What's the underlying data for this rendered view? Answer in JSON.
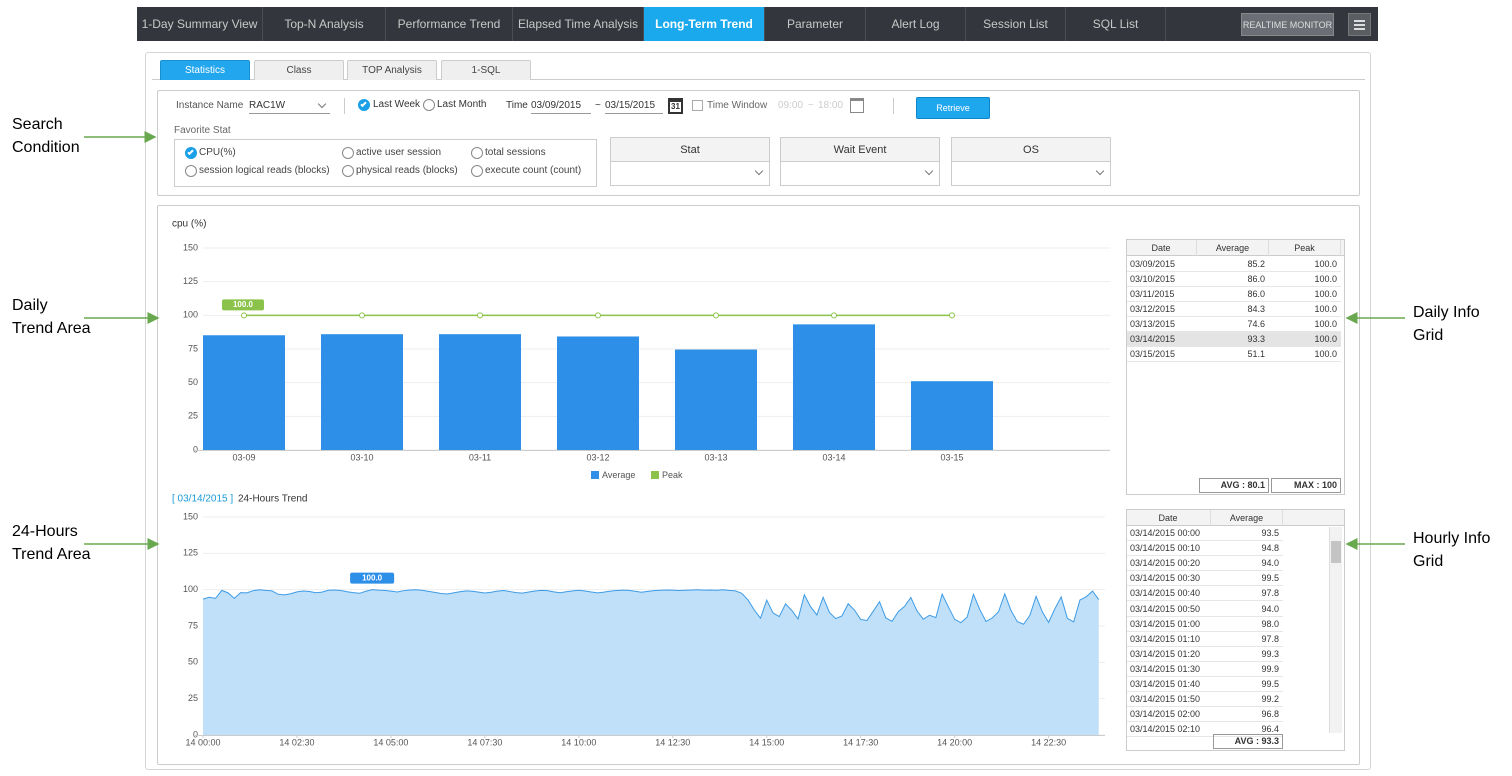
{
  "nav": {
    "tabs": [
      "1-Day Summary View",
      "Top-N Analysis",
      "Performance Trend",
      "Elapsed Time Analysis",
      "Long-Term Trend",
      "Parameter",
      "Alert Log",
      "Session List",
      "SQL List"
    ],
    "active": 4,
    "realtime_button": "REALTIME MONITOR"
  },
  "sub_tabs": [
    "Statistics",
    "Class",
    "TOP Analysis",
    "1-SQL"
  ],
  "search": {
    "instance_label": "Instance Name",
    "instance": "RAC1W",
    "last_week": "Last Week",
    "last_month": "Last Month",
    "time_label": "Time",
    "date_from": "03/09/2015",
    "range_sep": "~",
    "date_to": "03/15/2015",
    "calendar_day": "31",
    "time_window": "Time Window",
    "time_from": "09:00",
    "time_to": "18:00",
    "retrieve": "Retrieve",
    "favorite_label": "Favorite Stat",
    "favorites": [
      "CPU(%)",
      "active user session",
      "total sessions",
      "session logical reads (blocks)",
      "physical reads (blocks)",
      "execute count (count)"
    ],
    "favorite_checked": 0,
    "selectors": [
      "Stat",
      "Wait Event",
      "OS"
    ]
  },
  "annotations": [
    {
      "lines": [
        "Search",
        "Condition"
      ]
    },
    {
      "lines": [
        "Daily",
        "Trend Area"
      ]
    },
    {
      "lines": [
        "24-Hours",
        "Trend Area"
      ]
    },
    {
      "lines": [
        "Daily Info",
        "Grid"
      ]
    },
    {
      "lines": [
        "Hourly Info",
        "Grid"
      ]
    }
  ],
  "chart_data": [
    {
      "type": "bar",
      "title": "cpu (%)",
      "categories": [
        "03-09",
        "03-10",
        "03-11",
        "03-12",
        "03-13",
        "03-14",
        "03-15"
      ],
      "series": [
        {
          "name": "Average",
          "color": "#2e8fe8",
          "values": [
            85.2,
            86.0,
            86.0,
            84.3,
            74.6,
            93.3,
            51.1
          ]
        },
        {
          "name": "Peak",
          "type": "line",
          "color": "#8bc34a",
          "values": [
            100,
            100,
            100,
            100,
            100,
            100,
            100
          ],
          "value_labels": [
            "100.0",
            null,
            null,
            null,
            null,
            null,
            null
          ]
        }
      ],
      "ylim": [
        0,
        150
      ],
      "yticks": [
        0,
        25,
        50,
        75,
        100,
        125,
        150
      ],
      "grid": true,
      "legend": "bottom"
    },
    {
      "type": "area",
      "title_date": "[ 03/14/2015 ]",
      "title": "24-Hours Trend",
      "color": "#3d9be6",
      "fill": "#bfe0f8",
      "x": [
        0,
        10,
        20,
        30,
        40,
        50,
        60,
        70,
        80,
        90,
        100,
        110,
        120,
        130,
        140,
        150,
        160,
        170,
        180,
        190,
        200,
        210,
        220,
        230,
        240,
        250,
        260,
        270,
        280,
        290,
        300,
        310,
        320,
        330,
        340,
        350,
        360,
        370,
        380,
        390,
        400,
        410,
        420,
        430,
        440,
        450,
        460,
        470,
        480,
        490,
        500,
        510,
        520,
        530,
        540,
        550,
        560,
        570,
        580,
        590,
        600,
        610,
        620,
        630,
        640,
        650,
        660,
        670,
        680,
        690,
        700,
        710,
        720,
        730,
        740,
        750,
        760,
        770,
        780,
        790,
        800,
        810,
        820,
        830,
        840,
        850,
        860,
        870,
        880,
        890,
        900,
        910,
        920,
        930,
        940,
        950,
        960,
        970,
        980,
        990,
        1000,
        1010,
        1020,
        1030,
        1040,
        1050,
        1060,
        1070,
        1080,
        1090,
        1100,
        1110,
        1120,
        1130,
        1140,
        1150,
        1160,
        1170,
        1180,
        1190,
        1200,
        1210,
        1220,
        1230,
        1240,
        1250,
        1260,
        1270,
        1280,
        1290,
        1300,
        1310,
        1320,
        1330,
        1340,
        1350,
        1360,
        1370,
        1380,
        1390,
        1400,
        1410,
        1420,
        1430
      ],
      "values": [
        93.5,
        94.8,
        94.0,
        99.5,
        97.8,
        94.0,
        98.0,
        97.8,
        99.3,
        99.9,
        99.5,
        99.2,
        96.8,
        96.4,
        97.2,
        98.5,
        99.1,
        98.7,
        97.9,
        98.3,
        99.6,
        99.8,
        99.4,
        98.6,
        98.0,
        97.5,
        98.9,
        100.0,
        99.7,
        99.5,
        99.0,
        98.4,
        99.3,
        99.8,
        99.9,
        99.6,
        98.8,
        98.1,
        97.4,
        97.0,
        97.8,
        98.6,
        99.2,
        98.9,
        98.3,
        97.7,
        98.2,
        99.0,
        99.4,
        98.7,
        98.0,
        97.6,
        98.4,
        99.1,
        99.5,
        99.3,
        98.5,
        97.9,
        98.6,
        99.2,
        99.6,
        99.1,
        98.4,
        97.8,
        98.3,
        99.0,
        99.4,
        99.7,
        99.5,
        98.9,
        98.2,
        98.8,
        99.3,
        99.6,
        99.8,
        99.7,
        99.4,
        99.6,
        99.8,
        99.9,
        99.7,
        99.8,
        99.6,
        99.9,
        99.5,
        99.2,
        97.5,
        93.0,
        86.1,
        80.4,
        92.8,
        84.0,
        81.5,
        90.2,
        85.7,
        79.8,
        96.5,
        88.3,
        82.6,
        94.8,
        84.4,
        80.1,
        81.9,
        90.3,
        86.0,
        79.5,
        78.8,
        85.2,
        91.7,
        80.6,
        78.2,
        84.9,
        88.5,
        94.6,
        85.3,
        79.7,
        82.4,
        80.8,
        96.9,
        88.1,
        79.6,
        77.3,
        81.2,
        96.8,
        86.4,
        78.1,
        80.5,
        84.8,
        97.1,
        85.6,
        78.0,
        76.2,
        82.3,
        95.4,
        84.7,
        77.5,
        86.9,
        95.0,
        80.2,
        77.8,
        92.9,
        95.1,
        99.0,
        93.2
      ],
      "value_labels": [
        null,
        null,
        null,
        null,
        null,
        null,
        null,
        null,
        null,
        null,
        null,
        null,
        null,
        null,
        null,
        null,
        null,
        null,
        null,
        null,
        null,
        null,
        null,
        null,
        null,
        null,
        null,
        "100.0",
        null,
        null,
        null,
        null,
        null,
        null,
        null,
        null,
        null,
        null,
        null,
        null,
        null,
        null,
        null,
        null,
        null,
        null,
        null,
        null,
        null,
        null,
        null,
        null,
        null,
        null,
        null,
        null,
        null,
        null,
        null,
        null,
        null,
        null,
        null,
        null,
        null,
        null,
        null,
        null,
        null,
        null,
        null,
        null,
        null,
        null,
        null,
        null,
        null,
        null,
        null,
        null,
        null,
        null,
        null,
        null,
        null,
        null,
        null,
        null,
        null,
        null,
        null,
        null,
        null,
        null,
        null,
        null,
        null,
        null,
        null,
        null,
        null,
        null,
        null,
        null,
        null,
        null,
        null,
        null,
        null,
        null,
        null,
        null,
        null,
        null,
        null,
        null,
        null,
        null,
        null,
        null,
        null,
        null,
        null,
        null,
        null,
        null,
        null,
        null,
        null,
        null,
        null,
        null,
        null,
        null,
        null,
        null,
        null,
        null,
        null,
        null,
        null,
        null,
        null,
        null
      ],
      "xlim": [
        0,
        1440
      ],
      "xticks": [
        {
          "value": 0,
          "label": "14 00:00"
        },
        {
          "value": 150,
          "label": "14 02:30"
        },
        {
          "value": 300,
          "label": "14 05:00"
        },
        {
          "value": 450,
          "label": "14 07:30"
        },
        {
          "value": 600,
          "label": "14 10:00"
        },
        {
          "value": 750,
          "label": "14 12:30"
        },
        {
          "value": 900,
          "label": "14 15:00"
        },
        {
          "value": 1050,
          "label": "14 17:30"
        },
        {
          "value": 1200,
          "label": "14 20:00"
        },
        {
          "value": 1350,
          "label": "14 22:30"
        }
      ],
      "ylim": [
        0,
        150
      ],
      "yticks": [
        0,
        25,
        50,
        75,
        100,
        125,
        150
      ],
      "grid": true
    }
  ],
  "daily_grid": {
    "columns": [
      "Date",
      "Average",
      "Peak"
    ],
    "selected_row": 5,
    "rows": [
      [
        "03/09/2015",
        "85.2",
        "100.0"
      ],
      [
        "03/10/2015",
        "86.0",
        "100.0"
      ],
      [
        "03/11/2015",
        "86.0",
        "100.0"
      ],
      [
        "03/12/2015",
        "84.3",
        "100.0"
      ],
      [
        "03/13/2015",
        "74.6",
        "100.0"
      ],
      [
        "03/14/2015",
        "93.3",
        "100.0"
      ],
      [
        "03/15/2015",
        "51.1",
        "100.0"
      ]
    ],
    "footer": [
      "AVG : 80.1",
      "MAX : 100"
    ]
  },
  "hourly_grid": {
    "columns": [
      "Date",
      "Average"
    ],
    "rows": [
      [
        "03/14/2015 00:00",
        "93.5"
      ],
      [
        "03/14/2015 00:10",
        "94.8"
      ],
      [
        "03/14/2015 00:20",
        "94.0"
      ],
      [
        "03/14/2015 00:30",
        "99.5"
      ],
      [
        "03/14/2015 00:40",
        "97.8"
      ],
      [
        "03/14/2015 00:50",
        "94.0"
      ],
      [
        "03/14/2015 01:00",
        "98.0"
      ],
      [
        "03/14/2015 01:10",
        "97.8"
      ],
      [
        "03/14/2015 01:20",
        "99.3"
      ],
      [
        "03/14/2015 01:30",
        "99.9"
      ],
      [
        "03/14/2015 01:40",
        "99.5"
      ],
      [
        "03/14/2015 01:50",
        "99.2"
      ],
      [
        "03/14/2015 02:00",
        "96.8"
      ],
      [
        "03/14/2015 02:10",
        "96.4"
      ]
    ],
    "footer": [
      "AVG : 93.3"
    ]
  }
}
